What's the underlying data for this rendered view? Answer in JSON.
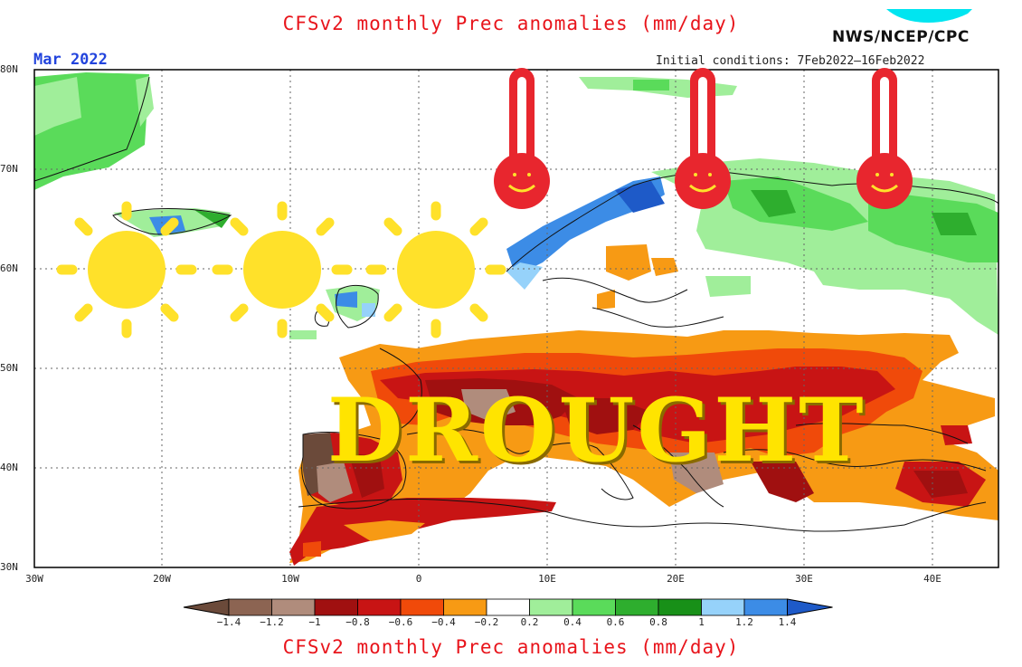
{
  "header": {
    "title": "CFSv2 monthly Prec anomalies (mm/day)",
    "agency": "NWS/NCEP/CPC",
    "forecast_month": "Mar 2022",
    "initial_conditions": "Initial conditions: 7Feb2022–16Feb2022"
  },
  "map": {
    "lat_labels": [
      "80N",
      "70N",
      "60N",
      "50N",
      "40N",
      "30N"
    ],
    "lon_labels": [
      "30W",
      "20W",
      "10W",
      "0",
      "10E",
      "20E",
      "30E",
      "40E"
    ],
    "overlay_text": "DROUGHT",
    "overlay_icons": [
      "sun-icon",
      "sun-icon",
      "sun-icon",
      "thermometer-icon",
      "thermometer-icon",
      "thermometer-icon"
    ],
    "anomaly_regions": [
      {
        "region": "Iberian Peninsula",
        "category": "-1.4 to -1.0"
      },
      {
        "region": "France",
        "category": "-1.4 to -0.8"
      },
      {
        "region": "Central Europe",
        "category": "-0.8 to -0.4"
      },
      {
        "region": "Balkans / Greece",
        "category": "-1.2 to -0.6"
      },
      {
        "region": "Ukraine / Russia south",
        "category": "-0.8 to -0.4"
      },
      {
        "region": "Norway coast",
        "category": "1.2 to 1.4"
      },
      {
        "region": "Finland / NW Russia",
        "category": "0.2 to 1.0"
      },
      {
        "region": "Greenland",
        "category": "0.4 to 0.8"
      }
    ]
  },
  "colorbar": {
    "labels": [
      "−1.4",
      "−1.2",
      "−1",
      "−0.8",
      "−0.6",
      "−0.4",
      "−0.2",
      "0.2",
      "0.4",
      "0.6",
      "0.8",
      "1",
      "1.2",
      "1.4"
    ],
    "colors": [
      "#6b4a3a",
      "#8c6452",
      "#b08c7c",
      "#a01010",
      "#c81414",
      "#f04a0a",
      "#f79a14",
      "#ffffff",
      "#a0ee9a",
      "#5adb5a",
      "#2eae2e",
      "#189018",
      "#96d2fa",
      "#3c8ce6",
      "#1e5ac8"
    ]
  },
  "footer": {
    "title": "CFSv2 monthly Prec anomalies (mm/day)"
  }
}
